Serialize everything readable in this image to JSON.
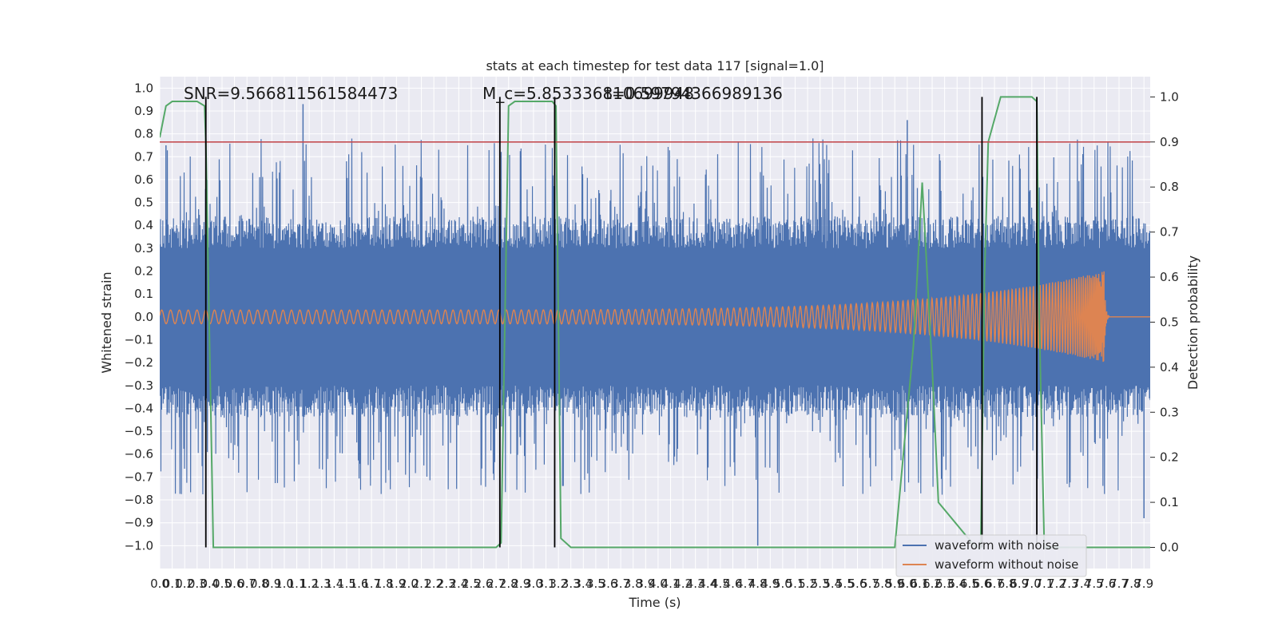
{
  "chart_data": {
    "type": "line",
    "title": "stats at each timestep for test data 117 [signal=1.0]",
    "xlabel": "Time (s)",
    "ylabel_left": "Whitened strain",
    "ylabel_right": "Detection probability",
    "xlim": [
      0.0,
      7.95
    ],
    "ylim_left": [
      -1.1,
      1.05
    ],
    "ylim_right": [
      -0.047,
      1.045
    ],
    "xtick_step": 0.1,
    "ytick_step_left": 0.1,
    "ytick_step_right": 0.1,
    "grid": true,
    "legend_position": "lower-right",
    "annotations": [
      {
        "text": "SNR=9.566811561584473",
        "x": 0.19,
        "y": 0.96
      },
      {
        "text": "M_c=5.853336810699948",
        "x": 2.6,
        "y": 0.96
      },
      {
        "text": "t=0.59794366989136",
        "x": 3.57,
        "y": 0.96
      }
    ],
    "threshold": {
      "value": 0.9,
      "axis": "right",
      "color": "#c44e52"
    },
    "vertical_markers_x": [
      0.37,
      2.73,
      3.17,
      6.6,
      7.04
    ],
    "series": [
      {
        "name": "waveform with noise",
        "axis": "left",
        "color": "#4c72b0",
        "noise_band": {
          "core": 0.4,
          "peak": 0.78,
          "spikes": [
            {
              "x": 0.05,
              "y": 0.75
            },
            {
              "x": 1.15,
              "y": 0.93
            },
            {
              "x": 4.8,
              "y": -1.0
            },
            {
              "x": 6.0,
              "y": 0.86
            },
            {
              "x": 7.9,
              "y": -0.88
            }
          ]
        }
      },
      {
        "name": "waveform without noise",
        "axis": "left",
        "color": "#dd8452",
        "chirp": {
          "start_amp": 0.03,
          "peak_amp": 0.2,
          "merger_x": 7.58,
          "ringdown_end_x": 7.62,
          "tail_value": 0.0
        }
      },
      {
        "name": "",
        "axis": "right",
        "color": "#55a868",
        "x": [
          0.0,
          0.05,
          0.1,
          0.3,
          0.36,
          0.37,
          0.43,
          0.5,
          1.0,
          2.0,
          2.7,
          2.74,
          2.8,
          2.85,
          3.0,
          3.15,
          3.18,
          3.22,
          3.3,
          4.0,
          5.0,
          5.9,
          6.05,
          6.12,
          6.2,
          6.25,
          6.55,
          6.59,
          6.62,
          6.65,
          6.75,
          7.0,
          7.04,
          7.06,
          7.1,
          7.5,
          7.65,
          7.95
        ],
        "y": [
          0.91,
          0.98,
          0.99,
          0.99,
          0.98,
          0.9,
          0.0,
          0.0,
          0.0,
          0.0,
          0.0,
          0.01,
          0.98,
          0.99,
          0.99,
          0.99,
          0.98,
          0.02,
          0.0,
          0.0,
          0.0,
          0.0,
          0.45,
          0.81,
          0.4,
          0.1,
          0.0,
          0.0,
          0.6,
          0.9,
          1.0,
          1.0,
          0.99,
          0.5,
          0.0,
          0.0,
          0.0,
          0.0
        ]
      }
    ]
  }
}
